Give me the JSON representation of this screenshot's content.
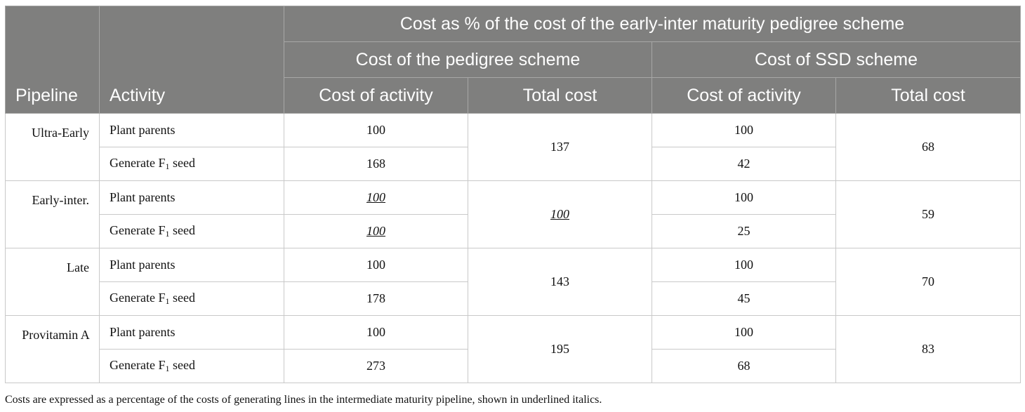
{
  "header": {
    "group_title": "Cost as % of the cost of the early-inter maturity pedigree scheme",
    "pipeline": "Pipeline",
    "activity": "Activity",
    "pedigree_scheme": "Cost of the pedigree scheme",
    "ssd_scheme": "Cost of SSD scheme",
    "cost_of_activity": "Cost of activity",
    "total_cost": "Total cost"
  },
  "activity_labels": {
    "plant_parents": "Plant parents",
    "generate_prefix": "Generate F",
    "generate_sub": "1",
    "generate_suffix": " seed"
  },
  "rows": [
    {
      "pipeline": "Ultra-Early",
      "pedigree_plant": "100",
      "pedigree_generate": "168",
      "pedigree_total": "137",
      "ssd_plant": "100",
      "ssd_generate": "42",
      "ssd_total": "68"
    },
    {
      "pipeline": "Early-inter.",
      "pedigree_plant": "100",
      "pedigree_generate": "100",
      "pedigree_total": "100",
      "ssd_plant": "100",
      "ssd_generate": "25",
      "ssd_total": "59"
    },
    {
      "pipeline": "Late",
      "pedigree_plant": "100",
      "pedigree_generate": "178",
      "pedigree_total": "143",
      "ssd_plant": "100",
      "ssd_generate": "45",
      "ssd_total": "70"
    },
    {
      "pipeline": "Provitamin A",
      "pedigree_plant": "100",
      "pedigree_generate": "273",
      "pedigree_total": "195",
      "ssd_plant": "100",
      "ssd_generate": "68",
      "ssd_total": "83"
    }
  ],
  "footnote": "Costs are expressed as a percentage of the costs of generating lines in the intermediate maturity pipeline, shown in underlined italics.",
  "colors": {
    "header_bg": "#7f7f7e",
    "header_text": "#ffffff",
    "grid": "#c9c9c9"
  }
}
